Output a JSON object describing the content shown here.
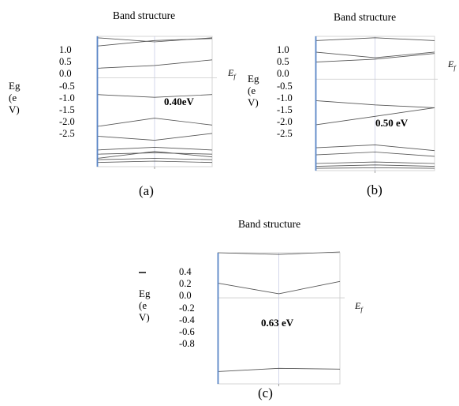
{
  "charts": [
    {
      "id": "a",
      "title": "Band structure",
      "caption": "(a)",
      "ylabel_lines": [
        "Eg",
        "(e",
        "V)"
      ],
      "ticks": [
        "1.0",
        "0.5",
        "0.0",
        "-0.5",
        "-1.0",
        "-1.5",
        "-2.0",
        "-2.5"
      ],
      "fermi_label": "E",
      "fermi_sub": "f",
      "gap_label": "0.40eV"
    },
    {
      "id": "b",
      "title": "Band structure",
      "caption": "(b)",
      "ylabel_lines": [
        "Eg",
        "(e",
        "V)"
      ],
      "ticks": [
        "1.0",
        "0.5",
        "0.0",
        "-0.5",
        "-1.0",
        "-1.5",
        "-2.0",
        "-2.5"
      ],
      "fermi_label": "E",
      "fermi_sub": "f",
      "gap_label": "0.50 eV"
    },
    {
      "id": "c",
      "title": "Band structure",
      "caption": "(c)",
      "ylabel_lines": [
        "Eg",
        "(e",
        "V)"
      ],
      "ticks": [
        "0.4",
        "0.2",
        "0.0",
        "-0.2",
        "-0.4",
        "-0.6",
        "-0.8"
      ],
      "fermi_label": "E",
      "fermi_sub": "f",
      "gap_label": "0.63 eV"
    }
  ],
  "chart_data": [
    {
      "type": "line",
      "title": "Band structure",
      "ylabel": "Eg (eV)",
      "ylim": [
        -3.2,
        1.5
      ],
      "x": [
        0,
        0.5,
        1
      ],
      "fermi_level": 0.0,
      "band_gap_eV": 0.4,
      "bands": [
        [
          1.45,
          1.3,
          1.45
        ],
        [
          1.15,
          1.35,
          1.42
        ],
        [
          0.35,
          0.45,
          0.65
        ],
        [
          -0.6,
          -0.7,
          -0.6
        ],
        [
          -1.75,
          -1.45,
          -1.7
        ],
        [
          -2.1,
          -2.25,
          -2.0
        ],
        [
          -2.6,
          -2.5,
          -2.6
        ],
        [
          -2.75,
          -2.7,
          -2.75
        ],
        [
          -2.9,
          -2.65,
          -2.85
        ],
        [
          -2.95,
          -2.9,
          -2.95
        ],
        [
          -3.05,
          -3.0,
          -3.05
        ]
      ]
    },
    {
      "type": "line",
      "title": "Band structure",
      "ylabel": "Eg (eV)",
      "ylim": [
        -3.2,
        1.5
      ],
      "x": [
        0,
        0.5,
        1
      ],
      "fermi_level": 0.0,
      "band_gap_eV": 0.5,
      "bands": [
        [
          1.35,
          1.45,
          1.35
        ],
        [
          0.95,
          0.75,
          0.95
        ],
        [
          0.6,
          0.7,
          0.9
        ],
        [
          -0.75,
          -0.9,
          -1.0
        ],
        [
          -1.6,
          -1.3,
          -1.0
        ],
        [
          -2.4,
          -2.3,
          -2.5
        ],
        [
          -2.65,
          -2.55,
          -2.7
        ],
        [
          -2.95,
          -2.9,
          -2.95
        ],
        [
          -3.05,
          -3.0,
          -3.05
        ],
        [
          -3.12,
          -3.1,
          -3.12
        ]
      ]
    },
    {
      "type": "line",
      "title": "Band structure",
      "ylabel": "Eg (eV)",
      "ylim": [
        -1.05,
        0.55
      ],
      "x": [
        0,
        0.5,
        1
      ],
      "fermi_level": 0.0,
      "band_gap_eV": 0.63,
      "bands": [
        [
          0.55,
          0.53,
          0.56
        ],
        [
          0.18,
          0.05,
          0.2
        ],
        [
          -0.9,
          -0.86,
          -0.87
        ]
      ]
    }
  ]
}
